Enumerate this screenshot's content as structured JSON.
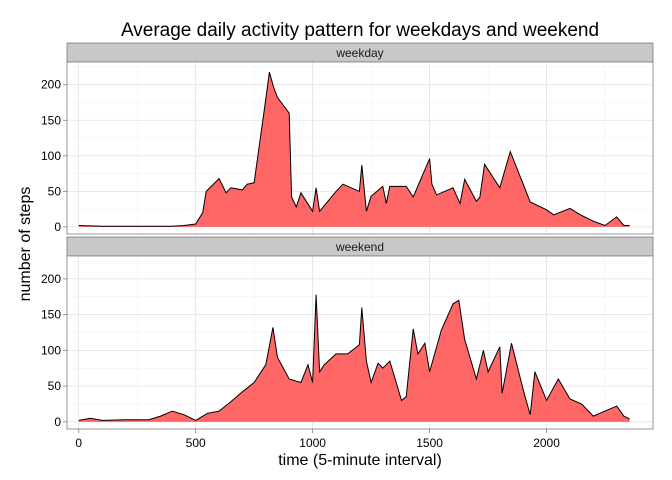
{
  "chart_data": {
    "type": "area",
    "title": "Average daily activity pattern for weekdays and weekend",
    "xlabel": "time (5-minute interval)",
    "ylabel": "number of steps",
    "xlim": [
      -50,
      2455
    ],
    "ylim": [
      -10,
      232
    ],
    "xticks": [
      0,
      500,
      1000,
      1500,
      2000
    ],
    "yticks": [
      0,
      50,
      100,
      150,
      200
    ],
    "grid": true,
    "fill_color": "#FF6666",
    "line_color": "#000000",
    "strip_color": "#C8C8C8",
    "panels": [
      {
        "name": "weekday",
        "x": [
          0,
          100,
          200,
          300,
          400,
          450,
          500,
          530,
          545,
          600,
          630,
          650,
          700,
          720,
          750,
          800,
          815,
          830,
          835,
          850,
          900,
          910,
          930,
          950,
          1000,
          1015,
          1030,
          1100,
          1130,
          1200,
          1210,
          1230,
          1250,
          1300,
          1315,
          1330,
          1400,
          1430,
          1500,
          1510,
          1530,
          1600,
          1630,
          1650,
          1700,
          1715,
          1735,
          1800,
          1835,
          1845,
          1900,
          1930,
          2000,
          2030,
          2100,
          2150,
          2200,
          2250,
          2300,
          2330,
          2355
        ],
        "values": [
          2,
          1,
          1,
          1,
          1,
          2,
          4,
          20,
          50,
          68,
          48,
          55,
          52,
          60,
          62,
          180,
          218,
          200,
          195,
          182,
          160,
          42,
          28,
          48,
          22,
          55,
          22,
          50,
          60,
          50,
          87,
          22,
          43,
          57,
          33,
          57,
          57,
          42,
          96,
          60,
          45,
          55,
          33,
          67,
          36,
          42,
          88,
          55,
          95,
          106,
          60,
          35,
          24,
          17,
          26,
          16,
          8,
          2,
          14,
          2,
          2
        ]
      },
      {
        "name": "weekend",
        "x": [
          0,
          50,
          100,
          200,
          300,
          350,
          400,
          450,
          500,
          550,
          600,
          650,
          700,
          750,
          800,
          830,
          850,
          900,
          950,
          980,
          1000,
          1015,
          1030,
          1050,
          1100,
          1150,
          1200,
          1210,
          1230,
          1250,
          1280,
          1300,
          1330,
          1380,
          1400,
          1430,
          1450,
          1480,
          1500,
          1550,
          1600,
          1625,
          1650,
          1700,
          1730,
          1750,
          1800,
          1810,
          1850,
          1900,
          1930,
          1950,
          2000,
          2050,
          2100,
          2150,
          2200,
          2250,
          2300,
          2330,
          2355
        ],
        "values": [
          2,
          5,
          2,
          3,
          3,
          8,
          15,
          10,
          2,
          12,
          15,
          28,
          42,
          55,
          80,
          132,
          90,
          60,
          55,
          80,
          55,
          178,
          70,
          80,
          95,
          95,
          108,
          160,
          85,
          55,
          82,
          75,
          85,
          30,
          35,
          130,
          95,
          110,
          70,
          128,
          165,
          170,
          115,
          60,
          100,
          70,
          105,
          40,
          110,
          45,
          10,
          70,
          30,
          60,
          32,
          25,
          8,
          15,
          22,
          8,
          4
        ]
      }
    ]
  }
}
